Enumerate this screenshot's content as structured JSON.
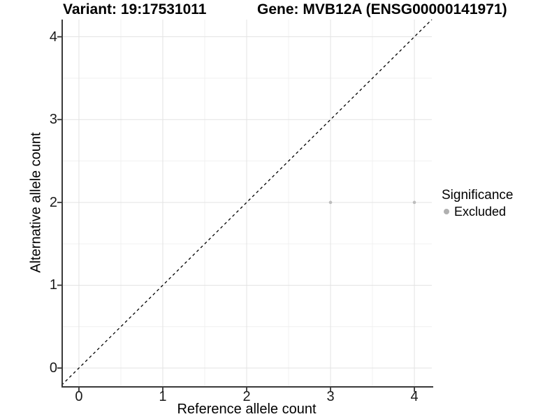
{
  "chart_data": {
    "type": "scatter",
    "titles": {
      "left": "Variant: 19:17531011",
      "right": "Gene: MVB12A (ENSG00000141971)"
    },
    "xlabel": "Reference allele count",
    "ylabel": "Alternative allele count",
    "xticks": [
      0,
      1,
      2,
      3,
      4
    ],
    "yticks": [
      0,
      1,
      2,
      3,
      4
    ],
    "xlim": [
      -0.208,
      4.208
    ],
    "ylim": [
      -0.219,
      4.208
    ],
    "grid": {
      "major": [
        0,
        1,
        2,
        3,
        4
      ],
      "minor": [
        0.5,
        1.5,
        2.5,
        3.5
      ],
      "visible": true
    },
    "reference_line": {
      "type": "identity",
      "equation": "y = x",
      "style": "dashed",
      "color": "#000000"
    },
    "series": [
      {
        "name": "Excluded",
        "color": "#bdbdbd",
        "points": [
          {
            "x": 3,
            "y": 2
          },
          {
            "x": 4,
            "y": 2
          }
        ]
      }
    ],
    "legend": {
      "title": "Significance",
      "position": "right",
      "items": [
        {
          "label": "Excluded",
          "color": "#b0b0b0"
        }
      ]
    },
    "colors": {
      "background": "#ffffff",
      "grid_major": "#e3e3e3",
      "grid_minor": "#f0f0f0",
      "axis_line": "#3a3a3a",
      "tick_mark": "#333333",
      "point": "#bdbdbd",
      "text": "#000000"
    }
  }
}
